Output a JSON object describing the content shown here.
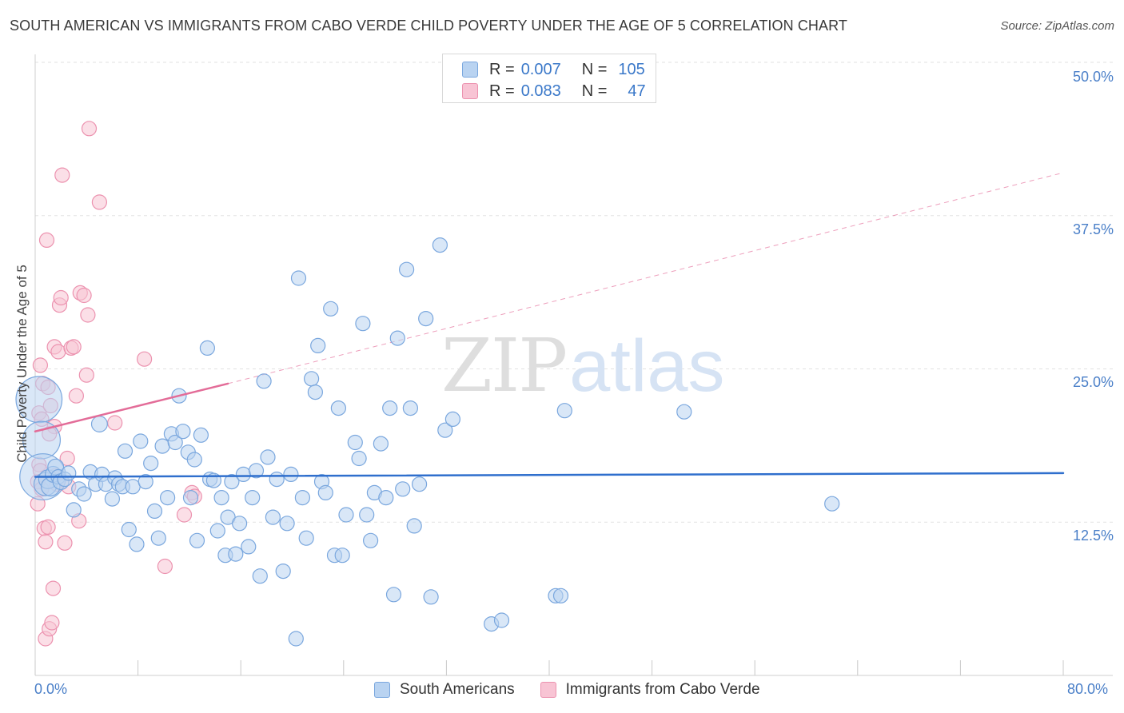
{
  "title": "SOUTH AMERICAN VS IMMIGRANTS FROM CABO VERDE CHILD POVERTY UNDER THE AGE OF 5 CORRELATION CHART",
  "source": "Source: ZipAtlas.com",
  "watermark": {
    "zip": "ZIP",
    "atlas": "atlas"
  },
  "legend_top": {
    "rows": [
      {
        "r_label": "R =",
        "r_value": "0.007",
        "n_label": "N =",
        "n_value": "105"
      },
      {
        "r_label": "R =",
        "r_value": "0.083",
        "n_label": "N =",
        "n_value": "47"
      }
    ]
  },
  "chart_data": {
    "type": "scatter",
    "title": "SOUTH AMERICAN VS IMMIGRANTS FROM CABO VERDE CHILD POVERTY UNDER THE AGE OF 5 CORRELATION CHART",
    "xlabel": "",
    "ylabel": "Child Poverty Under the Age of 5",
    "xlim": [
      0,
      80
    ],
    "ylim": [
      0,
      50
    ],
    "x_tick_labels": [
      "0.0%",
      "80.0%"
    ],
    "y_ticks": [
      12.5,
      25.0,
      37.5,
      50.0
    ],
    "y_tick_labels": [
      "12.5%",
      "25.0%",
      "37.5%",
      "50.0%"
    ],
    "legend_position": "bottom-center",
    "colors": {
      "south_fill": "#b9d3f1",
      "south_stroke": "#7aa7de",
      "south_line": "#2f6fcd",
      "cabo_fill": "#f8c4d4",
      "cabo_stroke": "#ec92af",
      "cabo_line": "#e36c98"
    },
    "series": [
      {
        "name": "South Americans",
        "r": 0.007,
        "n": 105,
        "trend": {
          "x": [
            0,
            80
          ],
          "y": [
            16.2,
            16.5
          ],
          "style": "solid"
        },
        "points": [
          [
            0.3,
            22.5,
            3.2
          ],
          [
            0.5,
            19.2,
            2.6
          ],
          [
            0.6,
            16.2,
            3.2
          ],
          [
            0.8,
            15.6,
            1.6
          ],
          [
            1.0,
            16.0,
            1.3
          ],
          [
            1.2,
            15.4,
            1.3
          ],
          [
            1.4,
            16.4,
            1.1
          ],
          [
            1.6,
            17.0,
            1.1
          ],
          [
            1.8,
            16.2,
            1.0
          ],
          [
            2.0,
            15.8,
            1.1
          ],
          [
            2.3,
            16.0,
            1.0
          ],
          [
            2.6,
            16.5,
            1.0
          ],
          [
            3.0,
            13.5,
            1.0
          ],
          [
            3.4,
            15.2,
            1.0
          ],
          [
            3.8,
            14.8,
            1.0
          ],
          [
            4.3,
            16.6,
            1.0
          ],
          [
            4.7,
            15.6,
            1.0
          ],
          [
            5.0,
            20.5,
            1.1
          ],
          [
            5.2,
            16.4,
            1.0
          ],
          [
            5.5,
            15.6,
            1.0
          ],
          [
            6.0,
            14.4,
            1.0
          ],
          [
            6.2,
            16.1,
            1.0
          ],
          [
            6.5,
            15.6,
            1.0
          ],
          [
            6.8,
            15.4,
            1.0
          ],
          [
            7.0,
            18.3,
            1.0
          ],
          [
            7.3,
            11.9,
            1.0
          ],
          [
            7.6,
            15.4,
            1.0
          ],
          [
            7.9,
            10.7,
            1.0
          ],
          [
            8.2,
            19.1,
            1.0
          ],
          [
            8.6,
            15.8,
            1.0
          ],
          [
            9.0,
            17.3,
            1.0
          ],
          [
            9.3,
            13.4,
            1.0
          ],
          [
            9.6,
            11.2,
            1.0
          ],
          [
            9.9,
            18.7,
            1.0
          ],
          [
            10.3,
            14.5,
            1.0
          ],
          [
            10.6,
            19.7,
            1.0
          ],
          [
            10.9,
            19.0,
            1.0
          ],
          [
            11.2,
            22.8,
            1.0
          ],
          [
            11.5,
            19.9,
            1.0
          ],
          [
            11.9,
            18.2,
            1.0
          ],
          [
            12.1,
            14.5,
            1.0
          ],
          [
            12.4,
            17.6,
            1.0
          ],
          [
            12.6,
            11.0,
            1.0
          ],
          [
            12.9,
            19.6,
            1.0
          ],
          [
            13.4,
            26.7,
            1.0
          ],
          [
            13.6,
            16.0,
            1.0
          ],
          [
            13.9,
            15.9,
            1.0
          ],
          [
            14.2,
            11.8,
            1.0
          ],
          [
            14.5,
            14.5,
            1.0
          ],
          [
            14.8,
            9.8,
            1.0
          ],
          [
            15.0,
            12.9,
            1.0
          ],
          [
            15.3,
            15.8,
            1.0
          ],
          [
            15.6,
            9.9,
            1.0
          ],
          [
            15.9,
            12.4,
            1.0
          ],
          [
            16.2,
            16.4,
            1.0
          ],
          [
            16.6,
            10.5,
            1.0
          ],
          [
            16.9,
            14.5,
            1.0
          ],
          [
            17.2,
            16.7,
            1.0
          ],
          [
            17.5,
            8.1,
            1.0
          ],
          [
            17.8,
            24.0,
            1.0
          ],
          [
            18.1,
            17.8,
            1.0
          ],
          [
            18.5,
            12.9,
            1.0
          ],
          [
            18.8,
            16.0,
            1.0
          ],
          [
            19.3,
            8.5,
            1.0
          ],
          [
            19.6,
            12.4,
            1.0
          ],
          [
            19.9,
            16.4,
            1.0
          ],
          [
            20.3,
            3.0,
            1.0
          ],
          [
            20.5,
            32.4,
            1.0
          ],
          [
            20.8,
            14.5,
            1.0
          ],
          [
            21.1,
            11.2,
            1.0
          ],
          [
            21.5,
            24.2,
            1.0
          ],
          [
            21.8,
            23.1,
            1.0
          ],
          [
            22.0,
            26.9,
            1.0
          ],
          [
            22.3,
            15.8,
            1.0
          ],
          [
            22.6,
            14.9,
            1.0
          ],
          [
            23.0,
            29.9,
            1.0
          ],
          [
            23.3,
            9.8,
            1.0
          ],
          [
            23.6,
            21.8,
            1.0
          ],
          [
            23.9,
            9.8,
            1.0
          ],
          [
            24.2,
            13.1,
            1.0
          ],
          [
            24.9,
            19.0,
            1.0
          ],
          [
            25.2,
            17.7,
            1.0
          ],
          [
            25.5,
            28.7,
            1.0
          ],
          [
            25.8,
            13.1,
            1.0
          ],
          [
            26.1,
            11.0,
            1.0
          ],
          [
            26.4,
            14.9,
            1.0
          ],
          [
            26.9,
            18.9,
            1.0
          ],
          [
            27.3,
            14.5,
            1.0
          ],
          [
            27.6,
            21.8,
            1.0
          ],
          [
            27.9,
            6.6,
            1.0
          ],
          [
            28.2,
            27.5,
            1.0
          ],
          [
            28.6,
            15.2,
            1.0
          ],
          [
            28.9,
            33.1,
            1.0
          ],
          [
            29.2,
            21.8,
            1.0
          ],
          [
            29.5,
            12.2,
            1.0
          ],
          [
            29.9,
            15.6,
            1.0
          ],
          [
            30.4,
            29.1,
            1.0
          ],
          [
            30.8,
            6.4,
            1.0
          ],
          [
            31.5,
            35.1,
            1.0
          ],
          [
            31.9,
            20.0,
            1.0
          ],
          [
            32.5,
            20.9,
            1.0
          ],
          [
            35.5,
            4.2,
            1.0
          ],
          [
            36.3,
            4.5,
            1.0
          ],
          [
            40.5,
            6.5,
            1.0
          ],
          [
            40.9,
            6.5,
            1.0
          ],
          [
            41.2,
            21.6,
            1.0
          ],
          [
            50.5,
            21.5,
            1.0
          ],
          [
            62.0,
            14.0,
            1.0
          ]
        ]
      },
      {
        "name": "Immigrants from Cabo Verde",
        "r": 0.083,
        "n": 47,
        "trend": {
          "x": [
            0,
            15
          ],
          "y": [
            19.9,
            23.8
          ],
          "style": "solid",
          "extension": {
            "x": [
              15,
              80
            ],
            "y": [
              23.8,
              41.0
            ],
            "style": "dashed"
          }
        },
        "points": [
          [
            0.2,
            15.8,
            1.0
          ],
          [
            0.2,
            14.0,
            1.0
          ],
          [
            0.3,
            21.4,
            1.0
          ],
          [
            0.3,
            17.2,
            1.0
          ],
          [
            0.4,
            25.3,
            1.0
          ],
          [
            0.4,
            16.7,
            1.0
          ],
          [
            0.5,
            20.9,
            1.0
          ],
          [
            0.5,
            15.2,
            1.0
          ],
          [
            0.6,
            23.8,
            1.0
          ],
          [
            0.7,
            12.0,
            1.0
          ],
          [
            0.8,
            10.9,
            1.0
          ],
          [
            0.8,
            3.0,
            1.0
          ],
          [
            0.9,
            35.5,
            1.0
          ],
          [
            1.0,
            23.5,
            1.0
          ],
          [
            1.0,
            12.1,
            1.0
          ],
          [
            1.1,
            3.8,
            1.0
          ],
          [
            1.2,
            22.0,
            1.0
          ],
          [
            1.3,
            4.3,
            1.0
          ],
          [
            1.4,
            7.1,
            1.0
          ],
          [
            1.5,
            20.3,
            1.0
          ],
          [
            1.5,
            26.8,
            1.0
          ],
          [
            1.7,
            15.6,
            1.0
          ],
          [
            1.8,
            26.4,
            1.0
          ],
          [
            1.9,
            30.2,
            1.0
          ],
          [
            2.0,
            30.8,
            1.0
          ],
          [
            2.1,
            40.8,
            1.0
          ],
          [
            2.3,
            10.8,
            1.0
          ],
          [
            2.5,
            17.7,
            1.0
          ],
          [
            2.6,
            15.4,
            1.0
          ],
          [
            2.8,
            26.7,
            1.0
          ],
          [
            3.0,
            26.8,
            1.0
          ],
          [
            3.2,
            22.8,
            1.0
          ],
          [
            3.4,
            12.6,
            1.0
          ],
          [
            3.5,
            31.2,
            1.0
          ],
          [
            3.8,
            31.0,
            1.0
          ],
          [
            4.0,
            24.5,
            1.0
          ],
          [
            4.1,
            29.4,
            1.0
          ],
          [
            4.2,
            44.6,
            1.0
          ],
          [
            5.0,
            38.6,
            1.0
          ],
          [
            6.2,
            20.6,
            1.0
          ],
          [
            8.5,
            25.8,
            1.0
          ],
          [
            10.1,
            8.9,
            1.0
          ],
          [
            11.6,
            13.1,
            1.0
          ],
          [
            12.2,
            14.9,
            1.0
          ],
          [
            12.4,
            14.6,
            1.0
          ],
          [
            1.6,
            16.3,
            1.0
          ],
          [
            1.1,
            19.7,
            1.0
          ]
        ]
      }
    ]
  },
  "legend_bottom": {
    "items": [
      "South Americans",
      "Immigrants from Cabo Verde"
    ]
  }
}
